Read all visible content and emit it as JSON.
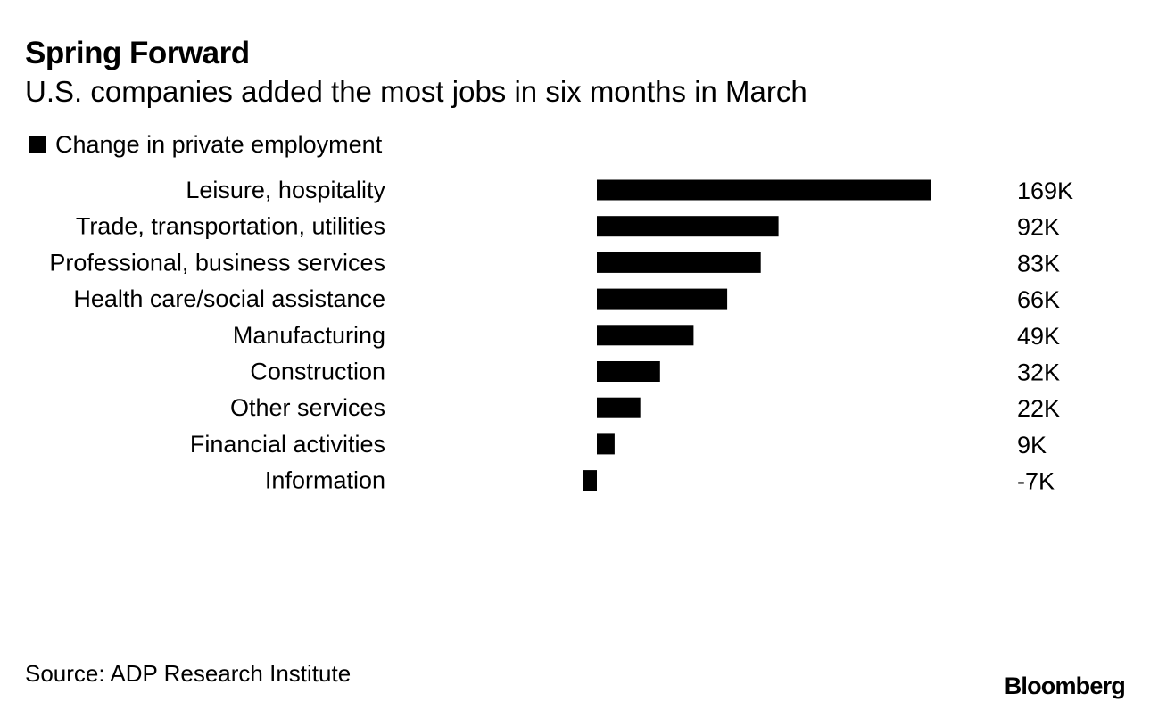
{
  "chart_data": {
    "type": "bar",
    "orientation": "horizontal",
    "title": "Spring Forward",
    "subtitle": "U.S. companies added the most jobs in six months in March",
    "legend": [
      "Change in private employment"
    ],
    "categories": [
      "Leisure, hospitality",
      "Trade, transportation, utilities",
      "Professional, business services",
      "Health care/social assistance",
      "Manufacturing",
      "Construction",
      "Other services",
      "Financial activities",
      "Information"
    ],
    "values": [
      169,
      92,
      83,
      66,
      49,
      32,
      22,
      9,
      -7
    ],
    "value_labels": [
      "169K",
      "92K",
      "83K",
      "66K",
      "49K",
      "32K",
      "22K",
      "9K",
      "-7K"
    ],
    "unit": "thousands of jobs",
    "xlim": [
      -7,
      169
    ],
    "grid": false,
    "source": "Source: ADP Research Institute",
    "brand": "Bloomberg",
    "colors": {
      "bar": "#000000",
      "text": "#000000",
      "background": "#ffffff"
    }
  }
}
